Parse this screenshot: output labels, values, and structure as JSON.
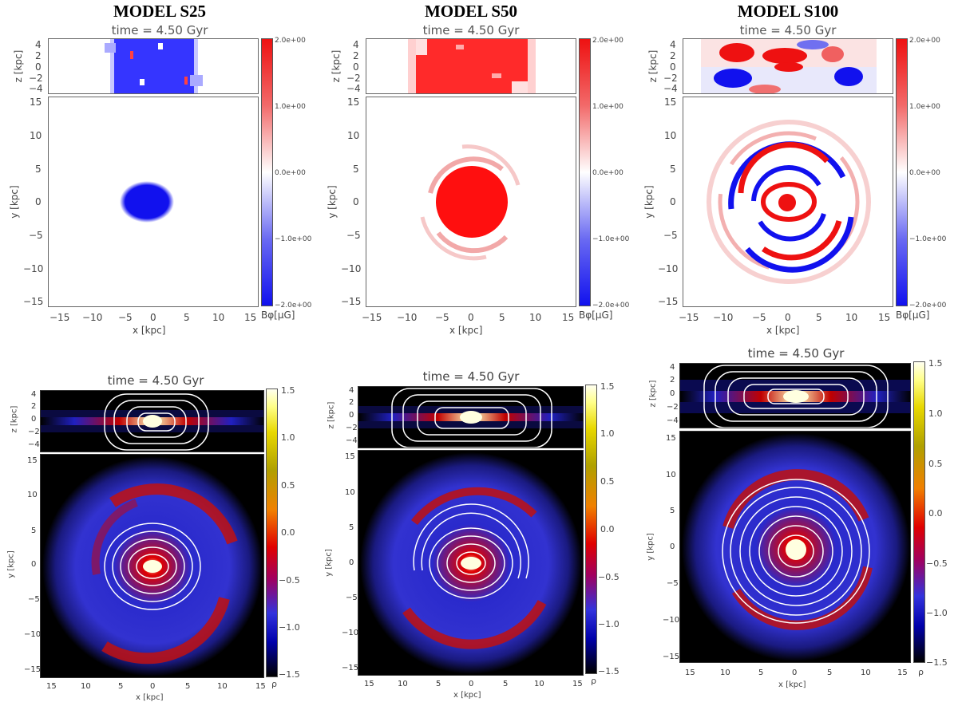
{
  "panels": [
    {
      "model": "MODEL S25",
      "time": "time = 4.50 Gyr",
      "density_time": "time = 4.50 Gyr"
    },
    {
      "model": "MODEL S50",
      "time": "time = 4.50 Gyr",
      "density_time": "time = 4.50 Gyr"
    },
    {
      "model": "MODEL S100",
      "time": "time = 4.50 Gyr",
      "density_time": "time = 4.50 Gyr"
    }
  ],
  "field_axes": {
    "z_label": "z [kpc]",
    "y_label": "y [kpc]",
    "x_label": "x [kpc]",
    "z_ticks": [
      "4",
      "2",
      "0",
      "−2",
      "−4"
    ],
    "y_ticks": [
      "15",
      "10",
      "5",
      "0",
      "−5",
      "−10",
      "−15"
    ],
    "x_ticks": [
      "−15",
      "−10",
      "−5",
      "0",
      "5",
      "10",
      "15"
    ]
  },
  "field_colorbar": {
    "label": "Bφ[μG]",
    "ticks": [
      "2.0e+00",
      "1.0e+00",
      "0.0e+00",
      "−1.0e+00",
      "−2.0e+00"
    ]
  },
  "density_axes": {
    "z_label": "z [kpc]",
    "y_label": "y [kpc]",
    "x_label": "x [kpc]",
    "z_ticks": [
      "4",
      "2",
      "0",
      "−2",
      "−4"
    ],
    "y_ticks": [
      "15",
      "10",
      "5",
      "0",
      "−5",
      "−10",
      "−15"
    ],
    "x_ticks": [
      "15",
      "10",
      "5",
      "0",
      "5",
      "10",
      "15"
    ]
  },
  "density_colorbar": {
    "label": "ρ",
    "ticks": [
      "1.5",
      "1.0",
      "0.5",
      "0.0",
      "−0.5",
      "−1.0",
      "−1.5"
    ]
  },
  "colors": {
    "positive": "#ee1111",
    "negative": "#1111ee",
    "background": "#000000"
  }
}
